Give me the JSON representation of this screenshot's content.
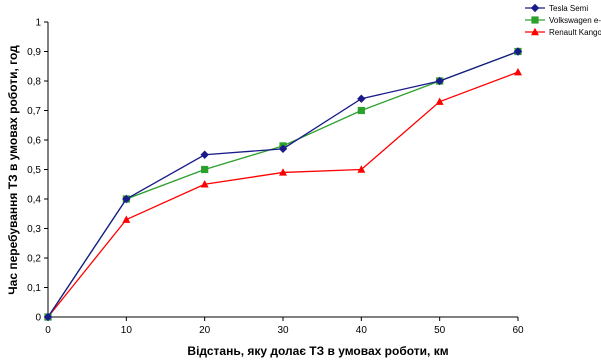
{
  "chart_data": {
    "type": "line",
    "title": "",
    "xlabel": "Відстань, яку долає ТЗ в умовах роботи, км",
    "ylabel": "Час перебування ТЗ в умовах роботи, год",
    "x": [
      0,
      10,
      20,
      30,
      40,
      50,
      60
    ],
    "xlim": [
      0,
      60
    ],
    "ylim": [
      0,
      1
    ],
    "x_ticks": [
      "0",
      "10",
      "20",
      "30",
      "40",
      "50",
      "60"
    ],
    "y_ticks": [
      "0",
      "0,1",
      "0,2",
      "0,3",
      "0,4",
      "0,5",
      "0,6",
      "0,7",
      "0,8",
      "0,9",
      "1"
    ],
    "grid": false,
    "legend_position": "top-right",
    "series": [
      {
        "name": "Tesla Semi",
        "color": "#1a1a8c",
        "marker": "diamond",
        "values": [
          0,
          0.4,
          0.55,
          0.57,
          0.74,
          0.8,
          0.9
        ]
      },
      {
        "name": "Volkswagen e-Crafter",
        "color": "#2ca02c",
        "marker": "square",
        "values": [
          0,
          0.4,
          0.5,
          0.58,
          0.7,
          0.8,
          0.9
        ]
      },
      {
        "name": "Renault Kangoo Z.E.",
        "color": "#ff0000",
        "marker": "triangle",
        "values": [
          0,
          0.33,
          0.45,
          0.49,
          0.5,
          0.73,
          0.83
        ]
      }
    ]
  }
}
